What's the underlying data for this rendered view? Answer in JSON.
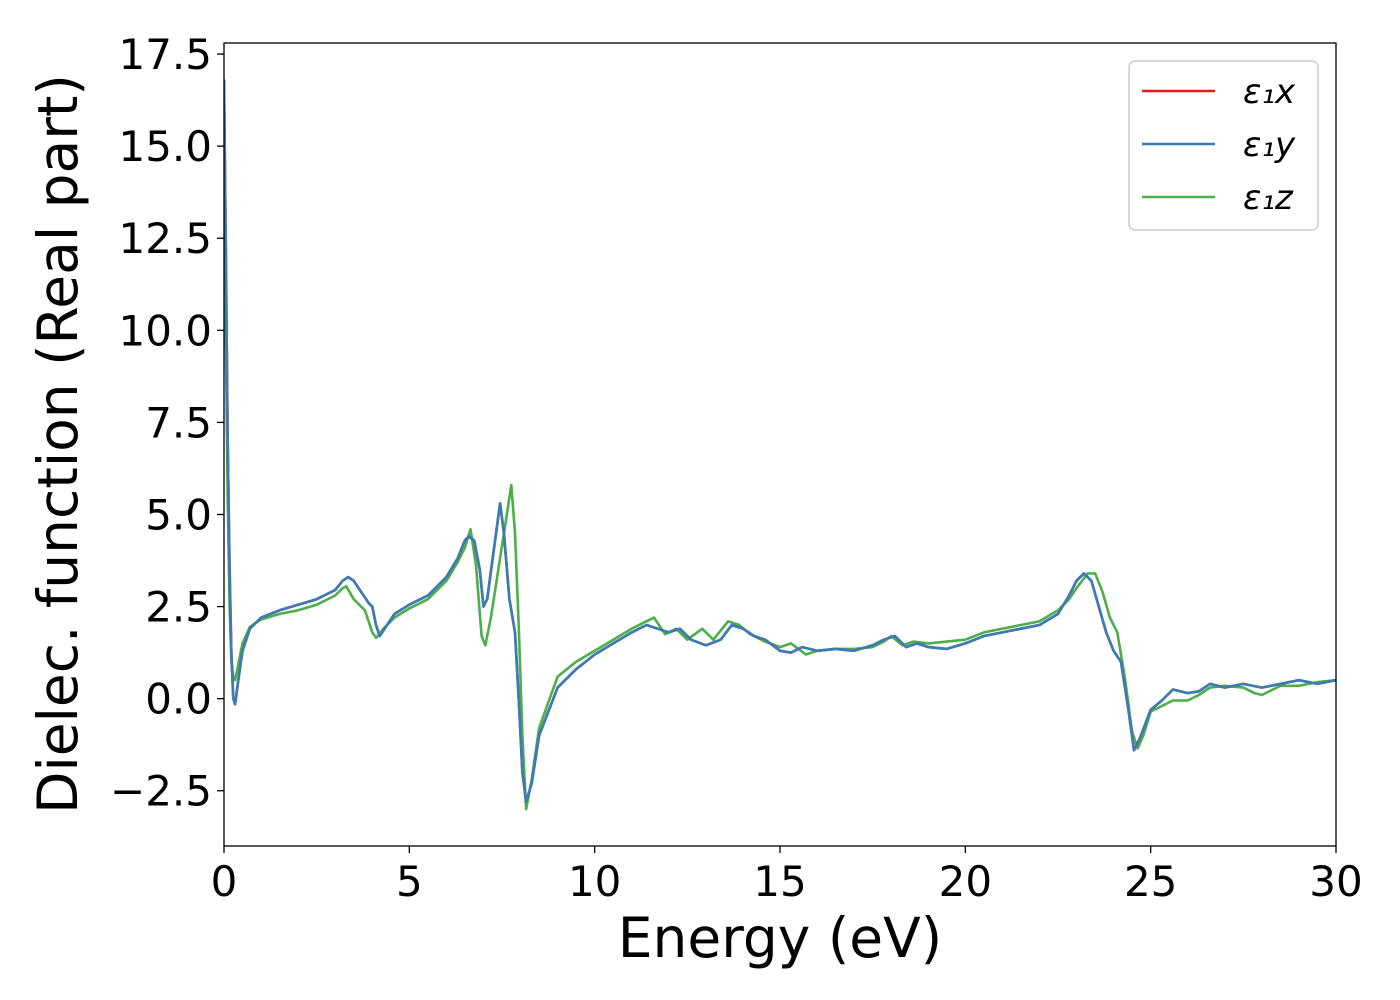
{
  "chart_data": {
    "type": "line",
    "xlabel": "Energy (eV)",
    "ylabel": "Dielec. function (Real part)",
    "xlim": [
      0,
      30
    ],
    "ylim": [
      -4.0,
      17.8
    ],
    "xticks": [
      0,
      5,
      10,
      15,
      20,
      25,
      30
    ],
    "xtick_labels": [
      "0",
      "5",
      "10",
      "15",
      "20",
      "25",
      "30"
    ],
    "yticks": [
      -2.5,
      0.0,
      2.5,
      5.0,
      7.5,
      10.0,
      12.5,
      15.0,
      17.5
    ],
    "ytick_labels": [
      "−2.5",
      "0.0",
      "2.5",
      "5.0",
      "7.5",
      "10.0",
      "12.5",
      "15.0",
      "17.5"
    ],
    "grid": false,
    "legend_position": "top-right",
    "series": [
      {
        "name": "ε₁x",
        "color": "#e41a1c",
        "points": [
          [
            0.0,
            16.8
          ],
          [
            0.05,
            12.0
          ],
          [
            0.1,
            7.0
          ],
          [
            0.15,
            3.5
          ],
          [
            0.2,
            1.2
          ],
          [
            0.25,
            0.0
          ],
          [
            0.3,
            -0.15
          ],
          [
            0.4,
            0.6
          ],
          [
            0.5,
            1.3
          ],
          [
            0.7,
            1.9
          ],
          [
            1.0,
            2.2
          ],
          [
            1.5,
            2.4
          ],
          [
            2.0,
            2.55
          ],
          [
            2.5,
            2.7
          ],
          [
            3.0,
            2.95
          ],
          [
            3.2,
            3.2
          ],
          [
            3.35,
            3.3
          ],
          [
            3.5,
            3.2
          ],
          [
            3.7,
            2.9
          ],
          [
            3.9,
            2.6
          ],
          [
            4.0,
            2.5
          ],
          [
            4.1,
            2.0
          ],
          [
            4.2,
            1.7
          ],
          [
            4.3,
            1.85
          ],
          [
            4.6,
            2.3
          ],
          [
            5.0,
            2.55
          ],
          [
            5.5,
            2.8
          ],
          [
            6.0,
            3.3
          ],
          [
            6.3,
            3.8
          ],
          [
            6.5,
            4.3
          ],
          [
            6.6,
            4.4
          ],
          [
            6.75,
            4.3
          ],
          [
            6.9,
            3.5
          ],
          [
            7.0,
            2.5
          ],
          [
            7.1,
            2.7
          ],
          [
            7.3,
            4.2
          ],
          [
            7.45,
            5.3
          ],
          [
            7.55,
            4.5
          ],
          [
            7.7,
            2.7
          ],
          [
            7.85,
            1.8
          ],
          [
            7.95,
            0.0
          ],
          [
            8.05,
            -2.0
          ],
          [
            8.15,
            -2.8
          ],
          [
            8.3,
            -2.3
          ],
          [
            8.5,
            -1.0
          ],
          [
            9.0,
            0.3
          ],
          [
            9.5,
            0.8
          ],
          [
            10.0,
            1.2
          ],
          [
            10.5,
            1.5
          ],
          [
            11.0,
            1.8
          ],
          [
            11.4,
            2.0
          ],
          [
            11.7,
            1.9
          ],
          [
            12.0,
            1.8
          ],
          [
            12.3,
            1.9
          ],
          [
            12.6,
            1.6
          ],
          [
            13.0,
            1.45
          ],
          [
            13.4,
            1.6
          ],
          [
            13.7,
            2.0
          ],
          [
            14.0,
            1.9
          ],
          [
            14.3,
            1.7
          ],
          [
            14.6,
            1.6
          ],
          [
            15.0,
            1.3
          ],
          [
            15.3,
            1.25
          ],
          [
            15.6,
            1.4
          ],
          [
            16.0,
            1.3
          ],
          [
            16.5,
            1.35
          ],
          [
            17.0,
            1.3
          ],
          [
            17.5,
            1.45
          ],
          [
            17.8,
            1.6
          ],
          [
            18.1,
            1.7
          ],
          [
            18.4,
            1.4
          ],
          [
            18.7,
            1.5
          ],
          [
            19.0,
            1.4
          ],
          [
            19.5,
            1.35
          ],
          [
            20.0,
            1.5
          ],
          [
            20.5,
            1.7
          ],
          [
            21.0,
            1.8
          ],
          [
            21.5,
            1.9
          ],
          [
            22.0,
            2.0
          ],
          [
            22.5,
            2.3
          ],
          [
            22.8,
            2.8
          ],
          [
            23.0,
            3.2
          ],
          [
            23.2,
            3.4
          ],
          [
            23.4,
            3.2
          ],
          [
            23.6,
            2.5
          ],
          [
            23.8,
            1.8
          ],
          [
            24.0,
            1.3
          ],
          [
            24.2,
            1.0
          ],
          [
            24.4,
            -0.3
          ],
          [
            24.55,
            -1.4
          ],
          [
            24.7,
            -1.1
          ],
          [
            25.0,
            -0.3
          ],
          [
            25.3,
            -0.05
          ],
          [
            25.6,
            0.25
          ],
          [
            26.0,
            0.15
          ],
          [
            26.3,
            0.2
          ],
          [
            26.6,
            0.4
          ],
          [
            27.0,
            0.3
          ],
          [
            27.5,
            0.4
          ],
          [
            28.0,
            0.3
          ],
          [
            28.5,
            0.4
          ],
          [
            29.0,
            0.5
          ],
          [
            29.5,
            0.4
          ],
          [
            30.0,
            0.5
          ]
        ]
      },
      {
        "name": "ε₁y",
        "color": "#377eb8",
        "points": [
          [
            0.0,
            16.8
          ],
          [
            0.05,
            12.0
          ],
          [
            0.1,
            7.0
          ],
          [
            0.15,
            3.5
          ],
          [
            0.2,
            1.2
          ],
          [
            0.25,
            0.0
          ],
          [
            0.3,
            -0.15
          ],
          [
            0.4,
            0.6
          ],
          [
            0.5,
            1.3
          ],
          [
            0.7,
            1.9
          ],
          [
            1.0,
            2.2
          ],
          [
            1.5,
            2.4
          ],
          [
            2.0,
            2.55
          ],
          [
            2.5,
            2.7
          ],
          [
            3.0,
            2.95
          ],
          [
            3.2,
            3.2
          ],
          [
            3.35,
            3.3
          ],
          [
            3.5,
            3.2
          ],
          [
            3.7,
            2.9
          ],
          [
            3.9,
            2.6
          ],
          [
            4.0,
            2.5
          ],
          [
            4.1,
            2.0
          ],
          [
            4.2,
            1.7
          ],
          [
            4.3,
            1.85
          ],
          [
            4.6,
            2.3
          ],
          [
            5.0,
            2.55
          ],
          [
            5.5,
            2.8
          ],
          [
            6.0,
            3.3
          ],
          [
            6.3,
            3.8
          ],
          [
            6.5,
            4.3
          ],
          [
            6.6,
            4.4
          ],
          [
            6.75,
            4.3
          ],
          [
            6.9,
            3.5
          ],
          [
            7.0,
            2.5
          ],
          [
            7.1,
            2.7
          ],
          [
            7.3,
            4.2
          ],
          [
            7.45,
            5.3
          ],
          [
            7.55,
            4.5
          ],
          [
            7.7,
            2.7
          ],
          [
            7.85,
            1.8
          ],
          [
            7.95,
            0.0
          ],
          [
            8.05,
            -2.0
          ],
          [
            8.15,
            -2.8
          ],
          [
            8.3,
            -2.3
          ],
          [
            8.5,
            -1.0
          ],
          [
            9.0,
            0.3
          ],
          [
            9.5,
            0.8
          ],
          [
            10.0,
            1.2
          ],
          [
            10.5,
            1.5
          ],
          [
            11.0,
            1.8
          ],
          [
            11.4,
            2.0
          ],
          [
            11.7,
            1.9
          ],
          [
            12.0,
            1.8
          ],
          [
            12.3,
            1.9
          ],
          [
            12.6,
            1.6
          ],
          [
            13.0,
            1.45
          ],
          [
            13.4,
            1.6
          ],
          [
            13.7,
            2.0
          ],
          [
            14.0,
            1.9
          ],
          [
            14.3,
            1.7
          ],
          [
            14.6,
            1.6
          ],
          [
            15.0,
            1.3
          ],
          [
            15.3,
            1.25
          ],
          [
            15.6,
            1.4
          ],
          [
            16.0,
            1.3
          ],
          [
            16.5,
            1.35
          ],
          [
            17.0,
            1.3
          ],
          [
            17.5,
            1.45
          ],
          [
            17.8,
            1.6
          ],
          [
            18.1,
            1.7
          ],
          [
            18.4,
            1.4
          ],
          [
            18.7,
            1.5
          ],
          [
            19.0,
            1.4
          ],
          [
            19.5,
            1.35
          ],
          [
            20.0,
            1.5
          ],
          [
            20.5,
            1.7
          ],
          [
            21.0,
            1.8
          ],
          [
            21.5,
            1.9
          ],
          [
            22.0,
            2.0
          ],
          [
            22.5,
            2.3
          ],
          [
            22.8,
            2.8
          ],
          [
            23.0,
            3.2
          ],
          [
            23.2,
            3.4
          ],
          [
            23.4,
            3.2
          ],
          [
            23.6,
            2.5
          ],
          [
            23.8,
            1.8
          ],
          [
            24.0,
            1.3
          ],
          [
            24.2,
            1.0
          ],
          [
            24.4,
            -0.3
          ],
          [
            24.55,
            -1.4
          ],
          [
            24.7,
            -1.1
          ],
          [
            25.0,
            -0.3
          ],
          [
            25.3,
            -0.05
          ],
          [
            25.6,
            0.25
          ],
          [
            26.0,
            0.15
          ],
          [
            26.3,
            0.2
          ],
          [
            26.6,
            0.4
          ],
          [
            27.0,
            0.3
          ],
          [
            27.5,
            0.4
          ],
          [
            28.0,
            0.3
          ],
          [
            28.5,
            0.4
          ],
          [
            29.0,
            0.5
          ],
          [
            29.5,
            0.4
          ],
          [
            30.0,
            0.5
          ]
        ]
      },
      {
        "name": "ε₁z",
        "color": "#4daf4a",
        "points": [
          [
            0.0,
            14.0
          ],
          [
            0.05,
            9.5
          ],
          [
            0.1,
            5.5
          ],
          [
            0.15,
            2.5
          ],
          [
            0.2,
            1.0
          ],
          [
            0.25,
            0.6
          ],
          [
            0.3,
            0.5
          ],
          [
            0.4,
            1.0
          ],
          [
            0.5,
            1.5
          ],
          [
            0.7,
            1.95
          ],
          [
            1.0,
            2.15
          ],
          [
            1.5,
            2.3
          ],
          [
            2.0,
            2.4
          ],
          [
            2.5,
            2.55
          ],
          [
            3.0,
            2.8
          ],
          [
            3.2,
            3.0
          ],
          [
            3.3,
            3.05
          ],
          [
            3.5,
            2.7
          ],
          [
            3.8,
            2.4
          ],
          [
            4.0,
            1.8
          ],
          [
            4.1,
            1.65
          ],
          [
            4.3,
            1.9
          ],
          [
            4.6,
            2.2
          ],
          [
            5.0,
            2.45
          ],
          [
            5.5,
            2.7
          ],
          [
            6.0,
            3.2
          ],
          [
            6.3,
            3.7
          ],
          [
            6.5,
            4.1
          ],
          [
            6.65,
            4.6
          ],
          [
            6.8,
            3.6
          ],
          [
            6.95,
            1.7
          ],
          [
            7.05,
            1.45
          ],
          [
            7.2,
            2.2
          ],
          [
            7.4,
            3.5
          ],
          [
            7.6,
            4.8
          ],
          [
            7.75,
            5.8
          ],
          [
            7.85,
            4.5
          ],
          [
            7.95,
            2.0
          ],
          [
            8.05,
            -1.0
          ],
          [
            8.15,
            -3.0
          ],
          [
            8.3,
            -2.2
          ],
          [
            8.5,
            -0.8
          ],
          [
            9.0,
            0.6
          ],
          [
            9.5,
            1.0
          ],
          [
            10.0,
            1.3
          ],
          [
            10.5,
            1.6
          ],
          [
            11.0,
            1.9
          ],
          [
            11.3,
            2.05
          ],
          [
            11.6,
            2.2
          ],
          [
            11.9,
            1.75
          ],
          [
            12.2,
            1.9
          ],
          [
            12.5,
            1.6
          ],
          [
            12.9,
            1.9
          ],
          [
            13.2,
            1.6
          ],
          [
            13.6,
            2.1
          ],
          [
            13.9,
            2.0
          ],
          [
            14.2,
            1.75
          ],
          [
            14.6,
            1.55
          ],
          [
            15.0,
            1.4
          ],
          [
            15.3,
            1.5
          ],
          [
            15.7,
            1.2
          ],
          [
            16.0,
            1.3
          ],
          [
            16.5,
            1.35
          ],
          [
            17.0,
            1.35
          ],
          [
            17.5,
            1.4
          ],
          [
            17.8,
            1.55
          ],
          [
            18.0,
            1.7
          ],
          [
            18.3,
            1.45
          ],
          [
            18.6,
            1.55
          ],
          [
            19.0,
            1.5
          ],
          [
            19.5,
            1.55
          ],
          [
            20.0,
            1.6
          ],
          [
            20.5,
            1.8
          ],
          [
            21.0,
            1.9
          ],
          [
            21.5,
            2.0
          ],
          [
            22.0,
            2.1
          ],
          [
            22.5,
            2.4
          ],
          [
            22.8,
            2.7
          ],
          [
            23.0,
            3.0
          ],
          [
            23.3,
            3.4
          ],
          [
            23.5,
            3.4
          ],
          [
            23.7,
            2.9
          ],
          [
            23.9,
            2.2
          ],
          [
            24.1,
            1.8
          ],
          [
            24.3,
            0.6
          ],
          [
            24.5,
            -0.9
          ],
          [
            24.65,
            -1.35
          ],
          [
            24.8,
            -1.0
          ],
          [
            25.0,
            -0.35
          ],
          [
            25.3,
            -0.2
          ],
          [
            25.6,
            -0.05
          ],
          [
            26.0,
            -0.05
          ],
          [
            26.3,
            0.1
          ],
          [
            26.6,
            0.3
          ],
          [
            27.0,
            0.35
          ],
          [
            27.5,
            0.3
          ],
          [
            27.8,
            0.15
          ],
          [
            28.0,
            0.1
          ],
          [
            28.5,
            0.35
          ],
          [
            29.0,
            0.35
          ],
          [
            29.5,
            0.45
          ],
          [
            30.0,
            0.5
          ]
        ]
      }
    ]
  }
}
